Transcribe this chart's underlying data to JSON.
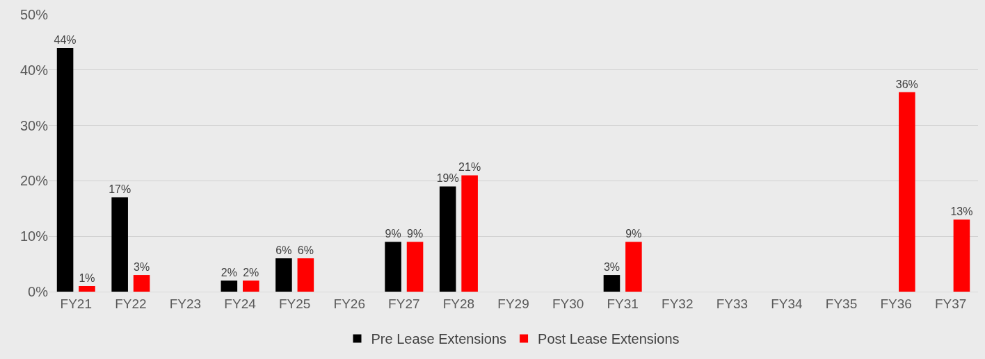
{
  "chart_data": {
    "type": "bar",
    "categories": [
      "FY21",
      "FY22",
      "FY23",
      "FY24",
      "FY25",
      "FY26",
      "FY27",
      "FY28",
      "FY29",
      "FY30",
      "FY31",
      "FY32",
      "FY33",
      "FY34",
      "FY35",
      "FY36",
      "FY37"
    ],
    "series": [
      {
        "name": "Pre Lease Extensions",
        "color": "#000000",
        "values": [
          44,
          17,
          null,
          2,
          6,
          null,
          9,
          19,
          null,
          null,
          3,
          null,
          null,
          null,
          null,
          null,
          null
        ],
        "value_labels": [
          "44%",
          "17%",
          null,
          "2%",
          "6%",
          null,
          "9%",
          "19%",
          null,
          null,
          "3%",
          null,
          null,
          null,
          null,
          null,
          null
        ]
      },
      {
        "name": "Post Lease Extensions",
        "color": "#ff0000",
        "values": [
          1,
          3,
          null,
          2,
          6,
          null,
          9,
          21,
          null,
          null,
          9,
          null,
          null,
          null,
          null,
          36,
          13
        ],
        "value_labels": [
          "1%",
          "3%",
          null,
          "2%",
          "6%",
          null,
          "9%",
          "21%",
          null,
          null,
          "9%",
          null,
          null,
          null,
          null,
          "36%",
          "13%"
        ]
      }
    ],
    "ylim": [
      0,
      50
    ],
    "yticks": [
      {
        "value": 0,
        "label": "0%"
      },
      {
        "value": 10,
        "label": "10%"
      },
      {
        "value": 20,
        "label": "20%"
      },
      {
        "value": 30,
        "label": "30%"
      },
      {
        "value": 40,
        "label": "40%"
      },
      {
        "value": 50,
        "label": "50%"
      }
    ],
    "grid": "y",
    "legend": "bottom"
  }
}
